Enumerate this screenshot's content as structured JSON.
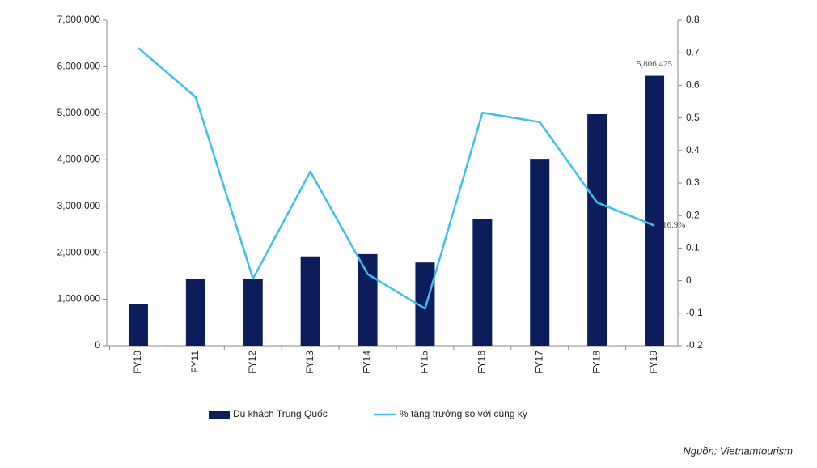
{
  "chart_data": {
    "type": "bar-line",
    "categories": [
      "FY10",
      "FY11",
      "FY12",
      "FY13",
      "FY14",
      "FY15",
      "FY16",
      "FY17",
      "FY18",
      "FY19"
    ],
    "series": [
      {
        "name": "Du khách Trung Quốc",
        "type": "bar",
        "color": "#0b1d5a",
        "values": [
          900000,
          1430000,
          1440000,
          1920000,
          1970000,
          1790000,
          2720000,
          4020000,
          4980000,
          5806425
        ],
        "value_labels": [
          null,
          null,
          null,
          null,
          null,
          null,
          null,
          null,
          null,
          "5,806,425"
        ]
      },
      {
        "name": "% tăng trưởng so với cùng kỳ",
        "type": "line",
        "axis": "y2",
        "color": "#3dbfef",
        "values": [
          0.715,
          0.564,
          0.006,
          0.335,
          0.02,
          -0.086,
          0.516,
          0.487,
          0.24,
          0.169
        ],
        "value_labels": [
          null,
          null,
          null,
          null,
          null,
          null,
          null,
          null,
          null,
          "16.9%"
        ]
      }
    ],
    "ylim": [
      0,
      7000000
    ],
    "yticks": [
      0,
      {
        "value": 1000000,
        "label": "1,000,000"
      },
      {
        "value": 2000000,
        "label": "2,000,000"
      },
      {
        "value": 3000000,
        "label": "3,000,000"
      },
      {
        "value": 4000000,
        "label": "4,000,000"
      },
      {
        "value": 5000000,
        "label": "5,000,000"
      },
      {
        "value": 6000000,
        "label": "6,000,000"
      },
      {
        "value": 7000000,
        "label": "7,000,000"
      }
    ],
    "y2lim": [
      -0.2,
      0.8
    ],
    "y2ticks": [
      -0.2,
      -0.1,
      0,
      0.1,
      0.2,
      0.3,
      0.4,
      0.5,
      0.6,
      0.7,
      0.8
    ],
    "grid": false,
    "legend": "bottom",
    "source": "Nguồn: Vietnamtourism"
  }
}
